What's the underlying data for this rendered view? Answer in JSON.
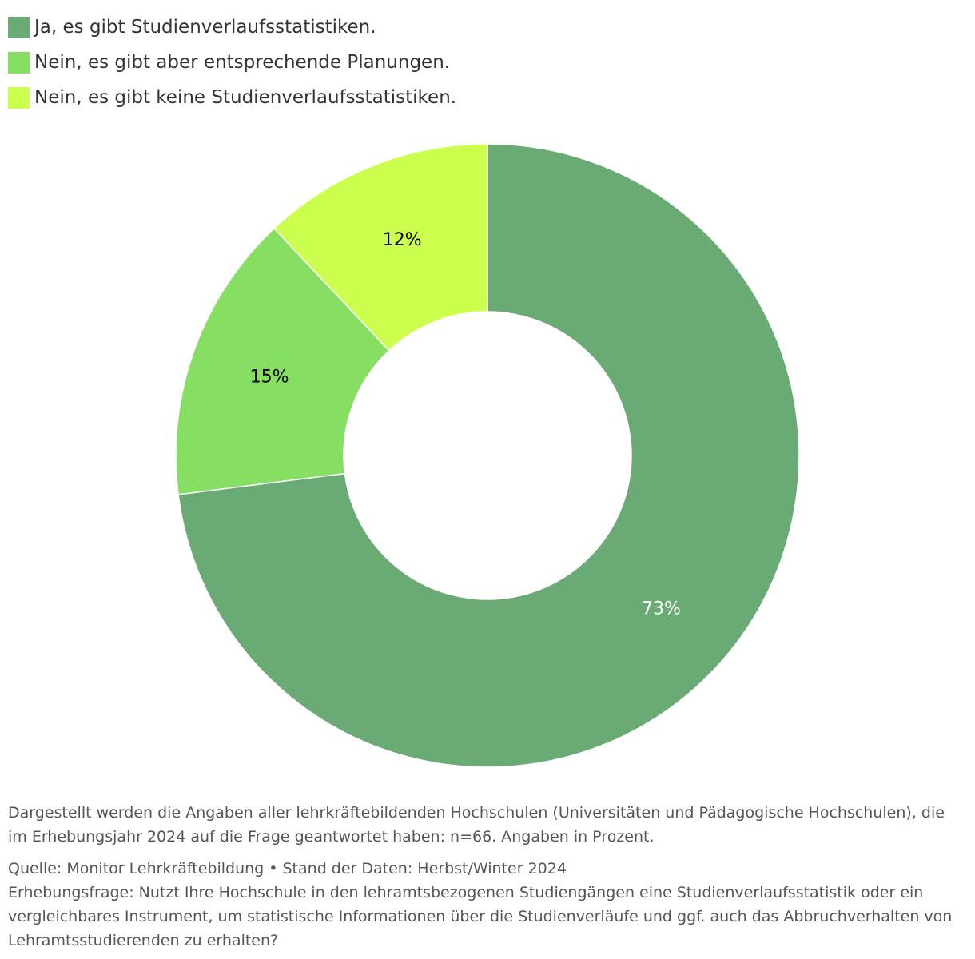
{
  "chart_data": {
    "type": "pie",
    "variant": "donut",
    "title": "",
    "legend_placement": "top-left",
    "slices": [
      {
        "label": "Ja, es gibt Studienverlaufsstatistiken.",
        "value": 73,
        "value_label": "73%",
        "color": "#6aaa74",
        "label_color": "#ffffff"
      },
      {
        "label": "Nein, es gibt aber entsprechende Planungen.",
        "value": 15,
        "value_label": "15%",
        "color": "#86df62",
        "label_color": "#000000"
      },
      {
        "label": "Nein, es gibt keine Studienverlaufsstatistiken.",
        "value": 12,
        "value_label": "12%",
        "color": "#ccff4d",
        "label_color": "#000000"
      }
    ]
  },
  "footer": {
    "note": "Dargestellt werden die Angaben aller lehrkräftebildenden Hochschulen (Universitäten und Pädagogische Hochschulen), die im Erhebungsjahr 2024 auf die Frage geantwortet haben: n=66. Angaben in Prozent.",
    "source": "Quelle: Monitor Lehrkräftebildung • Stand der Daten: Herbst/Winter 2024",
    "question": "Erhebungsfrage: Nutzt Ihre Hochschule in den lehramtsbezogenen Studiengängen eine Studienverlaufsstatistik oder ein vergleichbares Instrument, um statistische Informationen über die Studienverläufe und ggf. auch das Abbruchverhalten von Lehramtsstudierenden zu erhalten?"
  }
}
